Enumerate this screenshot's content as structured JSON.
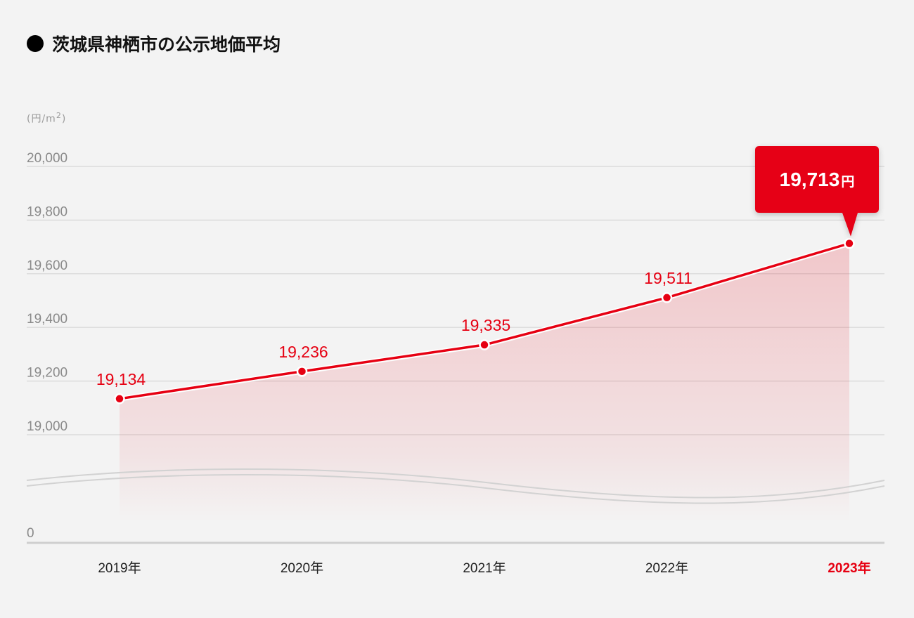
{
  "title": "茨城県神栖市の公示地価平均",
  "chart_data": {
    "type": "area",
    "title": "茨城県神栖市の公示地価平均",
    "unit_label": "(円/m",
    "unit_sup": "2",
    "unit_close": ")",
    "categories": [
      "2019年",
      "2020年",
      "2021年",
      "2022年",
      "2023年"
    ],
    "values": [
      19134,
      19236,
      19335,
      19511,
      19713
    ],
    "value_labels": [
      "19,134",
      "19,236",
      "19,335",
      "19,511",
      "19,713"
    ],
    "highlight_index": 4,
    "highlight_label": "19,713",
    "highlight_suffix": "円",
    "ylim": [
      19000,
      20000
    ],
    "yticks": [
      19000,
      19200,
      19400,
      19600,
      19800,
      20000
    ],
    "ytick_labels": [
      "19,000",
      "19,200",
      "19,400",
      "19,600",
      "19,800",
      "20,000"
    ],
    "axis_break": true,
    "zero_label": "0",
    "colors": {
      "line": "#e60012",
      "accent": "#e60012",
      "grid": "#d6d6d6",
      "tick_text": "#8a8a8a",
      "label_text": "#222222"
    }
  }
}
